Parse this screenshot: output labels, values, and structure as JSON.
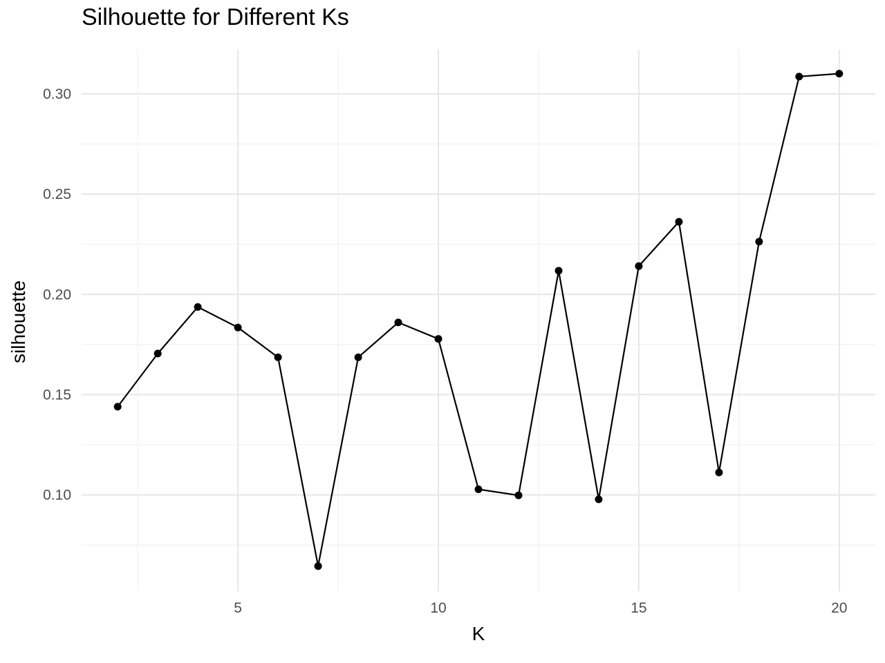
{
  "chart_data": {
    "type": "line",
    "title": "Silhouette for Different Ks",
    "xlabel": "K",
    "ylabel": "silhouette",
    "x": [
      2,
      3,
      4,
      5,
      6,
      7,
      8,
      9,
      10,
      11,
      12,
      13,
      14,
      15,
      16,
      17,
      18,
      19,
      20
    ],
    "series": [
      {
        "values": [
          0.144,
          0.1705,
          0.1937,
          0.1835,
          0.1686,
          0.0645,
          0.1686,
          0.186,
          0.1778,
          0.1028,
          0.0998,
          0.2118,
          0.0978,
          0.2141,
          0.2362,
          0.1112,
          0.2263,
          0.3086,
          0.3101
        ]
      }
    ],
    "xticks": [
      5,
      10,
      15,
      20
    ],
    "xtick_labels": [
      "5",
      "10",
      "15",
      "20"
    ],
    "yticks": [
      0.1,
      0.15,
      0.2,
      0.25,
      0.3
    ],
    "ytick_labels": [
      "0.10",
      "0.15",
      "0.20",
      "0.25",
      "0.30"
    ],
    "xlim": [
      1.1,
      20.9
    ],
    "ylim": [
      0.052,
      0.322
    ],
    "grid": true,
    "legend": "none",
    "colors": {
      "line": "#000000",
      "points": "#000000",
      "grid_major": "#e6e6e6",
      "grid_minor": "#f3f3f3"
    }
  }
}
